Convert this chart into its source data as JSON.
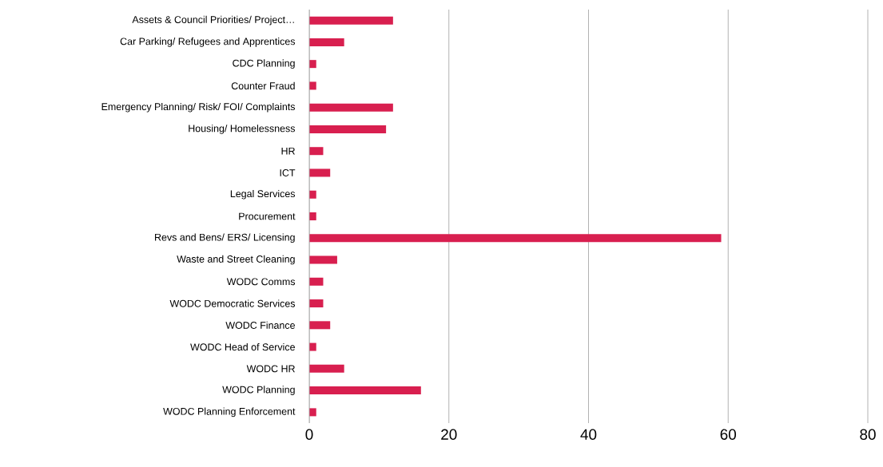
{
  "chart_data": {
    "type": "bar",
    "orientation": "horizontal",
    "categories": [
      "Assets & Council Priorities/ Project…",
      "Car Parking/ Refugees and Apprentices",
      "CDC Planning",
      "Counter Fraud",
      "Emergency Planning/ Risk/ FOI/ Complaints",
      "Housing/ Homelessness",
      "HR",
      "ICT",
      "Legal Services",
      "Procurement",
      "Revs and Bens/ ERS/ Licensing",
      "Waste and Street Cleaning",
      "WODC Comms",
      "WODC Democratic Services",
      "WODC Finance",
      "WODC Head of Service",
      "WODC HR",
      "WODC Planning",
      "WODC Planning Enforcement"
    ],
    "values": [
      12,
      5,
      1,
      1,
      12,
      11,
      2,
      3,
      1,
      1,
      59,
      4,
      2,
      2,
      3,
      1,
      5,
      16,
      1
    ],
    "color": "#d81f4f",
    "xlim": [
      0,
      80
    ],
    "xticks": [
      0,
      20,
      40,
      60,
      80
    ],
    "grid": "x"
  }
}
